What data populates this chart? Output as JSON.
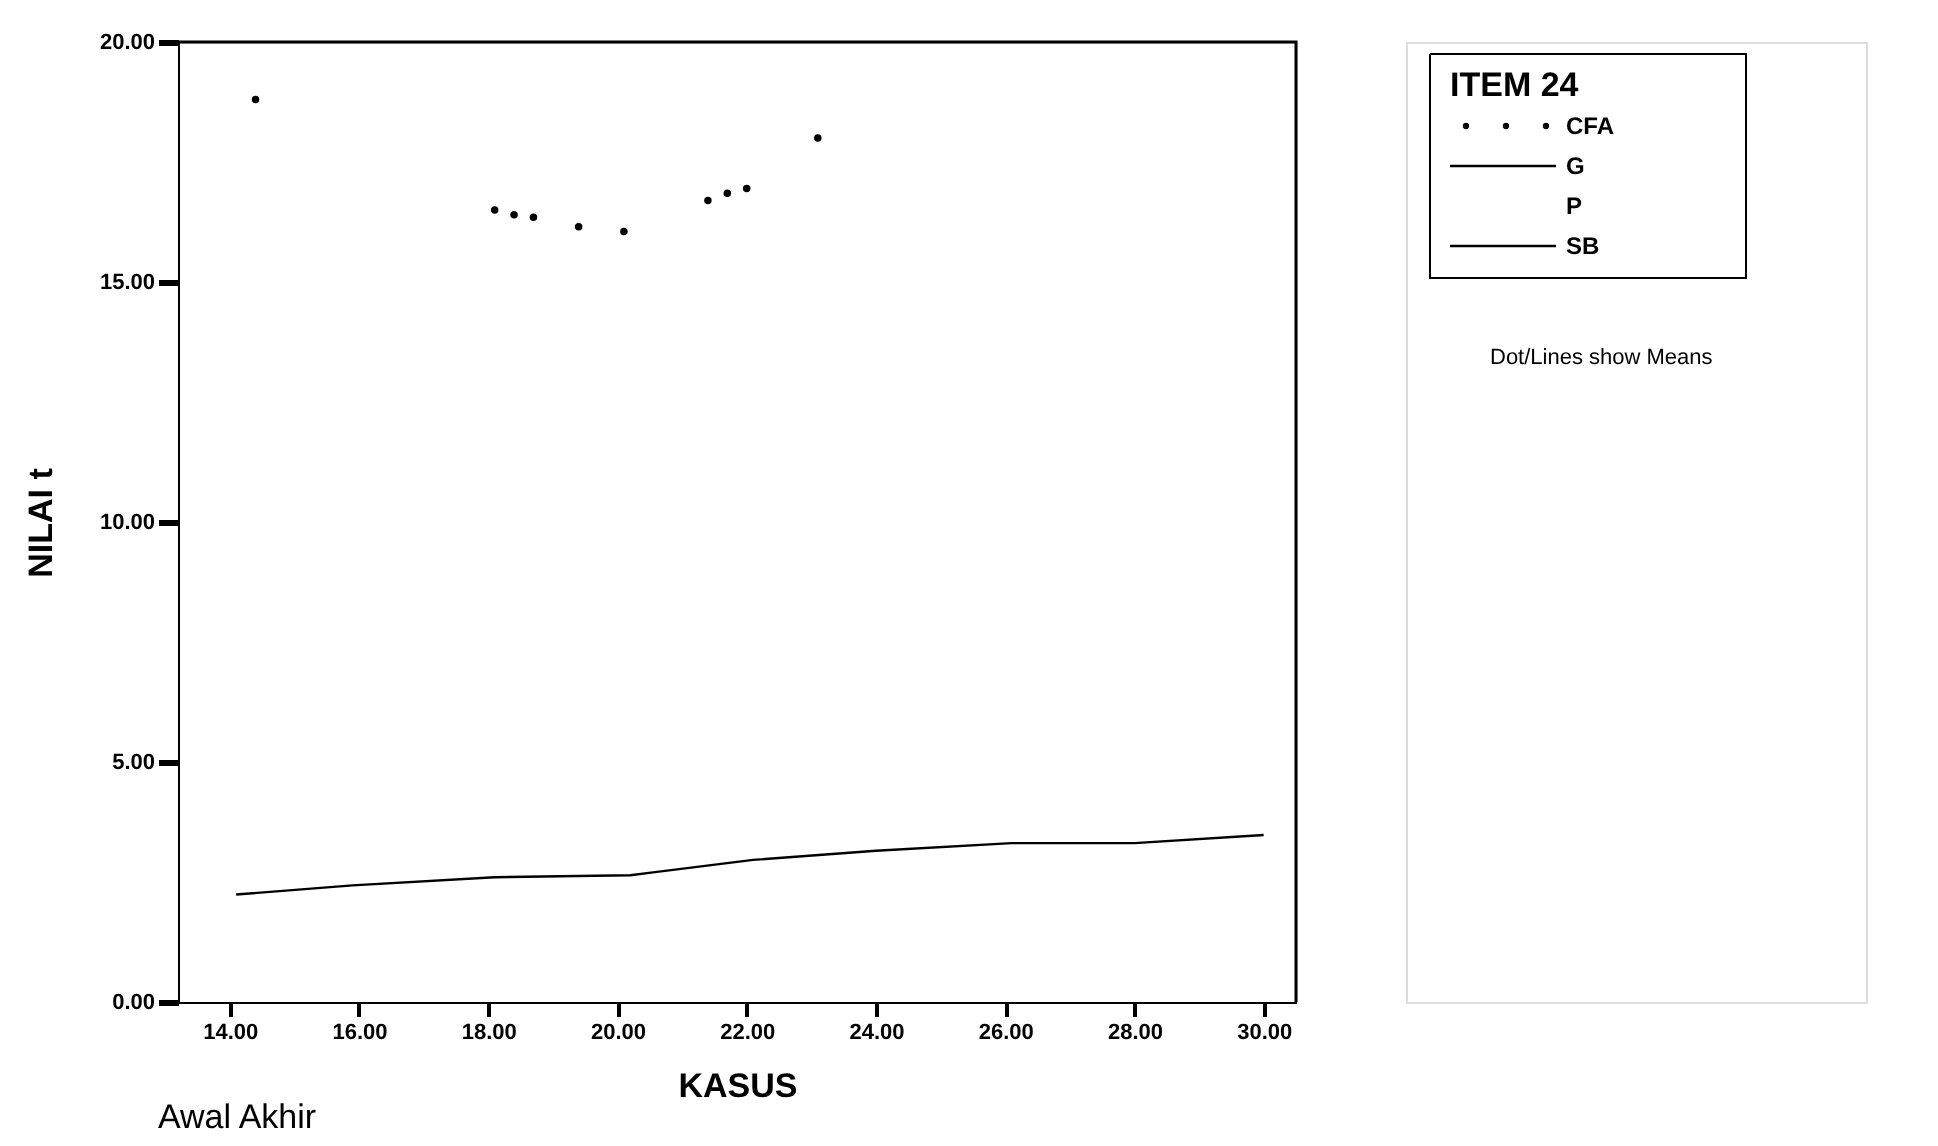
{
  "chart_data": {
    "type": "line",
    "xlabel": "KASUS",
    "ylabel": "NILAI t",
    "legend_title": "ITEM 24",
    "xlim": [
      13.2,
      30.5
    ],
    "ylim": [
      0,
      20
    ],
    "xticks": [
      {
        "value": 14,
        "label": "14.00"
      },
      {
        "value": 16,
        "label": "16.00"
      },
      {
        "value": 18,
        "label": "18.00"
      },
      {
        "value": 20,
        "label": "20.00"
      },
      {
        "value": 22,
        "label": "22.00"
      },
      {
        "value": 24,
        "label": "24.00"
      },
      {
        "value": 26,
        "label": "26.00"
      },
      {
        "value": 28,
        "label": "28.00"
      },
      {
        "value": 30,
        "label": "30.00"
      }
    ],
    "yticks": [
      {
        "value": 0,
        "label": "0.00"
      },
      {
        "value": 5,
        "label": "5.00"
      },
      {
        "value": 10,
        "label": "10.00"
      },
      {
        "value": 15,
        "label": "15.00"
      },
      {
        "value": 20,
        "label": "20.00"
      }
    ],
    "grid": false,
    "legend": "top right",
    "annotations": [
      "Awal Akhir",
      "Dot/Lines show Means"
    ],
    "series": [
      {
        "name": "CFA",
        "type": "scatter",
        "marker": "circle",
        "color": "#000000",
        "x": [
          14.4,
          18.1,
          18.4,
          18.7,
          19.4,
          20.1,
          21.4,
          21.7,
          22.0,
          23.1
        ],
        "values": [
          18.8,
          16.5,
          16.4,
          16.35,
          16.15,
          16.05,
          16.7,
          16.85,
          16.95,
          18.0
        ]
      },
      {
        "name": "G",
        "line_style": "solid",
        "color": "#000000",
        "x": [
          14.1,
          15.9,
          18.1,
          20.2,
          20.55,
          22.1,
          24.0,
          26.1,
          28.0,
          30.0
        ],
        "values": [
          2.24,
          2.43,
          2.6,
          2.64,
          2.7,
          2.96,
          3.15,
          3.31,
          3.31,
          3.48
        ]
      },
      {
        "name": "P",
        "color": "#000000"
      },
      {
        "name": "SB",
        "type": "line",
        "line_style": "solid",
        "color": "#000000"
      }
    ]
  }
}
